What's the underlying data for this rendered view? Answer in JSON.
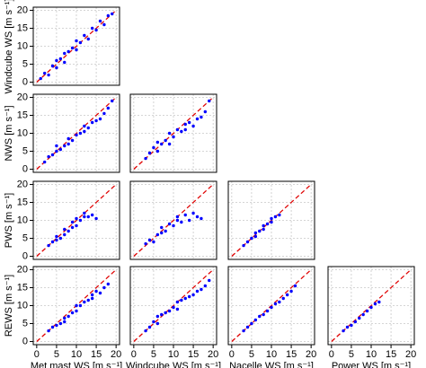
{
  "chart_data": [
    {
      "type": "scatter",
      "ylabel": "Windcube WS [m s⁻¹]",
      "color": "#0000ff",
      "grid": true,
      "identity_line": true,
      "xlim": [
        0,
        20
      ],
      "ylim": [
        0,
        20
      ],
      "xticks": [
        0,
        5,
        10,
        15,
        20
      ],
      "yticks": [
        0,
        5,
        10,
        15,
        20
      ],
      "x": [
        1,
        2,
        3,
        4,
        5,
        5,
        6,
        7,
        7,
        8,
        9,
        10,
        10,
        11,
        12,
        13,
        14,
        15,
        16,
        17,
        18,
        19
      ],
      "y": [
        1,
        2.5,
        2,
        4.5,
        4,
        6,
        6.5,
        5.5,
        8,
        8.5,
        9.5,
        9,
        11.5,
        11,
        13,
        12,
        15,
        14.5,
        17,
        16,
        18.5,
        19
      ]
    },
    {
      "type": "scatter",
      "ylabel": "NWS [m s⁻¹]",
      "color": "#0000ff",
      "grid": true,
      "identity_line": true,
      "xlim": [
        0,
        20
      ],
      "ylim": [
        0,
        20
      ],
      "xticks": [
        0,
        5,
        10,
        15,
        20
      ],
      "yticks": [
        0,
        5,
        10,
        15,
        20
      ],
      "x": [
        2,
        3,
        4,
        5,
        5,
        6,
        7,
        8,
        8,
        9,
        10,
        11,
        12,
        12,
        13,
        14,
        15,
        16,
        17,
        18,
        19
      ],
      "y": [
        2,
        3.5,
        4,
        5,
        6.5,
        5.5,
        6.5,
        7,
        8.5,
        8,
        9.5,
        10,
        10.5,
        12,
        11.5,
        13,
        13.5,
        14,
        15.5,
        17,
        19
      ]
    },
    {
      "type": "scatter",
      "color": "#0000ff",
      "grid": true,
      "identity_line": true,
      "xlim": [
        0,
        20
      ],
      "ylim": [
        0,
        20
      ],
      "xticks": [
        0,
        5,
        10,
        15,
        20
      ],
      "yticks": [
        0,
        5,
        10,
        15,
        20
      ],
      "x": [
        3,
        4,
        5,
        6,
        6,
        7,
        8,
        9,
        9,
        10,
        11,
        12,
        13,
        13,
        14,
        15,
        16,
        17,
        18,
        19
      ],
      "y": [
        3,
        4.5,
        6,
        5,
        7.5,
        7,
        8,
        7,
        10,
        9,
        11,
        10.5,
        12.5,
        11,
        13,
        12,
        14,
        14.5,
        16,
        19
      ]
    },
    {
      "type": "scatter",
      "ylabel": "PWS [m s⁻¹]",
      "color": "#0000ff",
      "grid": true,
      "identity_line": true,
      "xlim": [
        0,
        20
      ],
      "ylim": [
        0,
        20
      ],
      "xticks": [
        0,
        5,
        10,
        15,
        20
      ],
      "yticks": [
        0,
        5,
        10,
        15,
        20
      ],
      "x": [
        3,
        4,
        5,
        5,
        6,
        7,
        7,
        8,
        9,
        9,
        10,
        10,
        11,
        12,
        12,
        13,
        14,
        15
      ],
      "y": [
        3,
        4,
        4.5,
        5.5,
        5,
        6,
        7.5,
        7,
        8,
        9.5,
        8.5,
        10.5,
        10,
        11,
        12,
        11,
        11.5,
        10.5
      ]
    },
    {
      "type": "scatter",
      "color": "#0000ff",
      "grid": true,
      "identity_line": true,
      "xlim": [
        0,
        20
      ],
      "ylim": [
        0,
        20
      ],
      "xticks": [
        0,
        5,
        10,
        15,
        20
      ],
      "yticks": [
        0,
        5,
        10,
        15,
        20
      ],
      "x": [
        3,
        4,
        5,
        6,
        7,
        7,
        8,
        9,
        10,
        11,
        11,
        12,
        13,
        14,
        15,
        16,
        17
      ],
      "y": [
        3.5,
        4.5,
        4,
        6,
        6.5,
        8,
        7,
        9,
        8.5,
        10,
        11,
        9.5,
        11.5,
        10,
        12,
        11,
        10.5
      ]
    },
    {
      "type": "scatter",
      "color": "#0000ff",
      "grid": true,
      "identity_line": true,
      "xlim": [
        0,
        20
      ],
      "ylim": [
        0,
        20
      ],
      "xticks": [
        0,
        5,
        10,
        15,
        20
      ],
      "yticks": [
        0,
        5,
        10,
        15,
        20
      ],
      "x": [
        3,
        4,
        5,
        6,
        6,
        7,
        8,
        8,
        9,
        10,
        10,
        11,
        12
      ],
      "y": [
        3,
        4,
        5,
        5.5,
        6.5,
        7,
        7.5,
        8.5,
        9,
        9.5,
        10.5,
        11,
        11.5
      ]
    },
    {
      "type": "scatter",
      "ylabel": "REWS [m s⁻¹]",
      "xlabel": "Met mast WS [m s⁻¹]",
      "color": "#0000ff",
      "grid": true,
      "identity_line": true,
      "xlim": [
        0,
        20
      ],
      "ylim": [
        0,
        20
      ],
      "xticks": [
        0,
        5,
        10,
        15,
        20
      ],
      "yticks": [
        0,
        5,
        10,
        15,
        20
      ],
      "x": [
        3,
        4,
        5,
        6,
        7,
        7,
        8,
        9,
        10,
        10,
        11,
        12,
        13,
        14,
        14,
        15,
        16,
        17,
        18
      ],
      "y": [
        3,
        4,
        4.5,
        5,
        6.5,
        5.5,
        7,
        8,
        8.5,
        10,
        10,
        11,
        11.5,
        12,
        13,
        14,
        13.5,
        15,
        16
      ]
    },
    {
      "type": "scatter",
      "xlabel": "Windcube WS [m s⁻¹]",
      "color": "#0000ff",
      "grid": true,
      "identity_line": true,
      "xlim": [
        0,
        20
      ],
      "ylim": [
        0,
        20
      ],
      "xticks": [
        0,
        5,
        10,
        15,
        20
      ],
      "yticks": [
        0,
        5,
        10,
        15,
        20
      ],
      "x": [
        3,
        4,
        5,
        6,
        6,
        7,
        8,
        9,
        10,
        11,
        11,
        12,
        13,
        14,
        15,
        16,
        17,
        18,
        19
      ],
      "y": [
        3,
        4,
        5.5,
        5,
        7,
        7.5,
        8,
        8.5,
        9.5,
        9,
        11,
        11.5,
        12,
        12.5,
        13,
        14,
        14.5,
        15.5,
        17
      ]
    },
    {
      "type": "scatter",
      "xlabel": "Nacelle WS [m s⁻¹]",
      "color": "#0000ff",
      "grid": true,
      "identity_line": true,
      "xlim": [
        0,
        20
      ],
      "ylim": [
        0,
        20
      ],
      "xticks": [
        0,
        5,
        10,
        15,
        20
      ],
      "yticks": [
        0,
        5,
        10,
        15,
        20
      ],
      "x": [
        3,
        4,
        5,
        6,
        7,
        8,
        9,
        10,
        11,
        12,
        13,
        14,
        15,
        16
      ],
      "y": [
        3,
        4,
        5,
        6,
        7,
        7.5,
        8.5,
        9.5,
        10.5,
        11,
        12,
        13,
        14,
        15.5
      ]
    },
    {
      "type": "scatter",
      "xlabel": "Power WS [m s⁻¹]",
      "color": "#0000ff",
      "grid": true,
      "identity_line": true,
      "xlim": [
        0,
        20
      ],
      "ylim": [
        0,
        20
      ],
      "xticks": [
        0,
        5,
        10,
        15,
        20
      ],
      "yticks": [
        0,
        5,
        10,
        15,
        20
      ],
      "x": [
        3,
        4,
        5,
        6,
        7,
        8,
        9,
        10,
        11,
        12
      ],
      "y": [
        3,
        4,
        4.5,
        5.5,
        6.5,
        7.5,
        8.5,
        9.5,
        10.5,
        11
      ]
    }
  ]
}
